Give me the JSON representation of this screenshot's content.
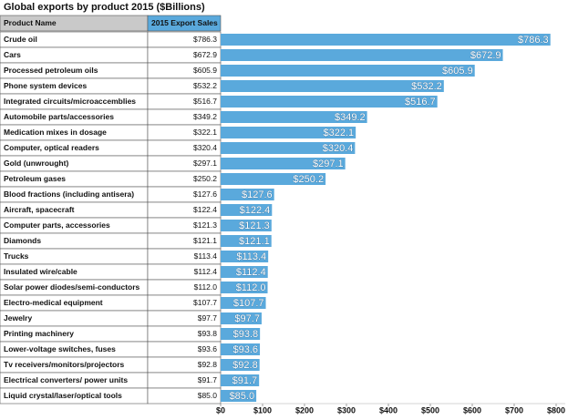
{
  "chart_data": {
    "type": "bar",
    "orientation": "horizontal",
    "title": "Global exports by product 2015 ($Billions)",
    "columns": [
      "Product Name",
      "2015 Export Sales"
    ],
    "categories": [
      "Crude oil",
      "Cars",
      "Processed petroleum oils",
      "Phone system devices",
      "Integrated circuits/microaccemblies",
      "Automobile parts/accessories",
      "Medication mixes in dosage",
      "Computer, optical readers",
      "Gold (unwrought)",
      "Petroleum gases",
      "Blood fractions (including antisera)",
      "Aircraft, spacecraft",
      "Computer parts, accessories",
      "Diamonds",
      "Trucks",
      "Insulated wire/cable",
      "Solar power diodes/semi-conductors",
      "Electro-medical equipment",
      "Jewelry",
      "Printing machinery",
      "Lower-voltage switches, fuses",
      "Tv receivers/monitors/projectors",
      "Electrical converters/ power units",
      "Liquid crystal/laser/optical tools"
    ],
    "values": [
      786.3,
      672.9,
      605.9,
      532.2,
      516.7,
      349.2,
      322.1,
      320.4,
      297.1,
      250.2,
      127.6,
      122.4,
      121.3,
      121.1,
      113.4,
      112.4,
      112.0,
      107.7,
      97.7,
      93.8,
      93.6,
      92.8,
      91.7,
      85.0
    ],
    "value_labels": [
      "$786.3",
      "$672.9",
      "$605.9",
      "$532.2",
      "$516.7",
      "$349.2",
      "$322.1",
      "$320.4",
      "$297.1",
      "$250.2",
      "$127.6",
      "$122.4",
      "$121.3",
      "$121.1",
      "$113.4",
      "$112.4",
      "$112.0",
      "$107.7",
      "$97.7",
      "$93.8",
      "$93.6",
      "$92.8",
      "$91.7",
      "$85.0"
    ],
    "color": "#5aa9dc",
    "xlim": [
      0,
      800
    ],
    "xticks": [
      {
        "value": 0,
        "label": "$0"
      },
      {
        "value": 100,
        "label": "$100"
      },
      {
        "value": 200,
        "label": "$200"
      },
      {
        "value": 300,
        "label": "$300"
      },
      {
        "value": 400,
        "label": "$400"
      },
      {
        "value": 500,
        "label": "$500"
      },
      {
        "value": 600,
        "label": "$600"
      },
      {
        "value": 700,
        "label": "$700"
      },
      {
        "value": 800,
        "label": "$800"
      }
    ],
    "grid": false
  }
}
